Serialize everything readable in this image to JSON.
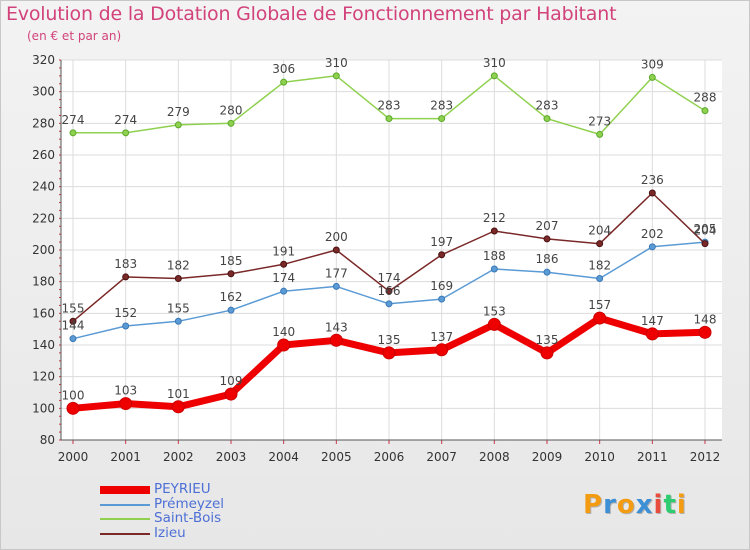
{
  "title": "Evolution de la Dotation Globale de Fonctionnement par Habitant",
  "subtitle": "(en € et par an)",
  "brand": {
    "text": "Proxiti",
    "letters": [
      "P",
      "r",
      "o",
      "x",
      "i",
      "t",
      "i"
    ],
    "colors": [
      "#f39c12",
      "#3d8fd6",
      "#f39c12",
      "#3d8fd6",
      "#e74c3c",
      "#2ecc71",
      "#f39c12"
    ]
  },
  "chart_data": {
    "type": "line",
    "title": "Evolution de la Dotation Globale de Fonctionnement par Habitant",
    "subtitle": "(en € et par an)",
    "xlabel": "",
    "ylabel": "",
    "ylim": [
      80,
      320
    ],
    "yticks": [
      80,
      100,
      120,
      140,
      160,
      180,
      200,
      220,
      240,
      260,
      280,
      300,
      320
    ],
    "grid": true,
    "legend_position": "bottom-left",
    "categories": [
      "2000",
      "2001",
      "2002",
      "2003",
      "2004",
      "2005",
      "2006",
      "2007",
      "2008",
      "2009",
      "2010",
      "2011",
      "2012"
    ],
    "series": [
      {
        "name": "PEYRIEU",
        "color": "#ee0000",
        "values": [
          100,
          103,
          101,
          109,
          140,
          143,
          135,
          137,
          153,
          135,
          157,
          147,
          148
        ],
        "labels": [
          "100",
          "103",
          "101",
          "109",
          "140",
          "143",
          "135",
          "137",
          "153",
          "135",
          "157",
          "147",
          "148"
        ]
      },
      {
        "name": "Prémeyzel",
        "color": "#5b9bd5",
        "values": [
          144,
          152,
          155,
          162,
          174,
          177,
          166,
          169,
          188,
          186,
          182,
          202,
          205
        ],
        "labels": [
          "144",
          "152",
          "155",
          "162",
          "174",
          "177",
          "166",
          "169",
          "188",
          "186",
          "182",
          "202",
          "205"
        ]
      },
      {
        "name": "Saint-Bois",
        "color": "#8fd14f",
        "values": [
          274,
          274,
          279,
          280,
          306,
          310,
          283,
          283,
          310,
          283,
          273,
          309,
          288
        ],
        "labels": [
          "274",
          "274",
          "279",
          "280",
          "306",
          "310",
          "283",
          "283",
          "310",
          "283",
          "273",
          "309",
          "288"
        ]
      },
      {
        "name": "Izieu",
        "color": "#7a2828",
        "values": [
          155,
          183,
          182,
          185,
          191,
          200,
          174,
          197,
          212,
          207,
          204,
          236,
          204
        ],
        "labels": [
          "155",
          "183",
          "182",
          "185",
          "191",
          "200",
          "174",
          "197",
          "212",
          "207",
          "204",
          "236",
          "204"
        ]
      }
    ]
  }
}
